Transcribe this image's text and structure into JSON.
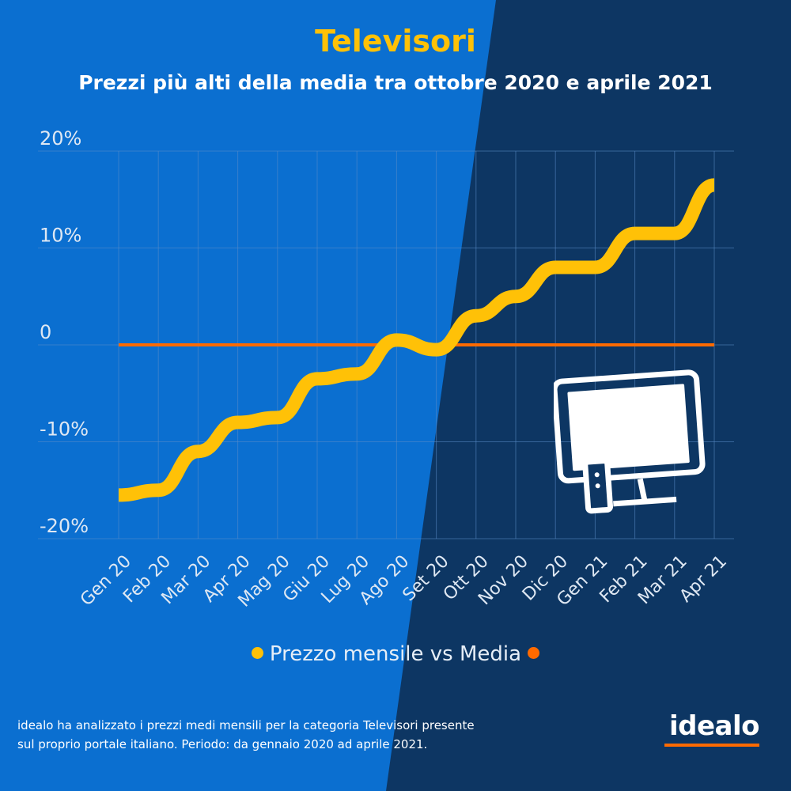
{
  "colors": {
    "bg_left": "#0b6fd0",
    "bg_right": "#0d3663",
    "line": "#ffc107",
    "average": "#ff6a00",
    "grid": "#5b8dc9"
  },
  "title": "Televisori",
  "subtitle": "Prezzi più alti della media tra ottobre 2020 e aprile 2021",
  "chart_data": {
    "type": "line",
    "categories": [
      "Gen 20",
      "Feb 20",
      "Mar 20",
      "Apr 20",
      "Mag 20",
      "Giu 20",
      "Lug 20",
      "Ago 20",
      "Set 20",
      "Ott 20",
      "Nov 20",
      "Dic 20",
      "Gen 21",
      "Feb 21",
      "Mar 21",
      "Apr 21"
    ],
    "series": [
      {
        "name": "Prezzo mensile",
        "values": [
          -15.5,
          -15.0,
          -11.0,
          -8.0,
          -7.5,
          -3.5,
          -3.0,
          0.5,
          -0.5,
          3.0,
          5.0,
          8.0,
          8.0,
          11.5,
          11.5,
          16.5
        ]
      },
      {
        "name": "Media",
        "values": [
          0,
          0,
          0,
          0,
          0,
          0,
          0,
          0,
          0,
          0,
          0,
          0,
          0,
          0,
          0,
          0
        ]
      }
    ],
    "ylim": [
      -20,
      20
    ],
    "y_ticks": [
      {
        "value": 20,
        "label": "20%"
      },
      {
        "value": 10,
        "label": "10%"
      },
      {
        "value": 0,
        "label": "0"
      },
      {
        "value": -10,
        "label": "-10%"
      },
      {
        "value": -20,
        "label": "-20%"
      }
    ],
    "legend": {
      "item1": "Prezzo mensile",
      "separator": "vs",
      "item2": "Media",
      "text": "Prezzo mensile vs Media"
    },
    "grid": true
  },
  "footnote": {
    "line1": "idealo ha analizzato i prezzi medi mensili per la categoria Televisori presente",
    "line2": "sul proprio portale italiano. Periodo: da gennaio 2020 ad aprile 2021."
  },
  "logo": {
    "text": "idealo",
    "icon": "tv-icon"
  }
}
